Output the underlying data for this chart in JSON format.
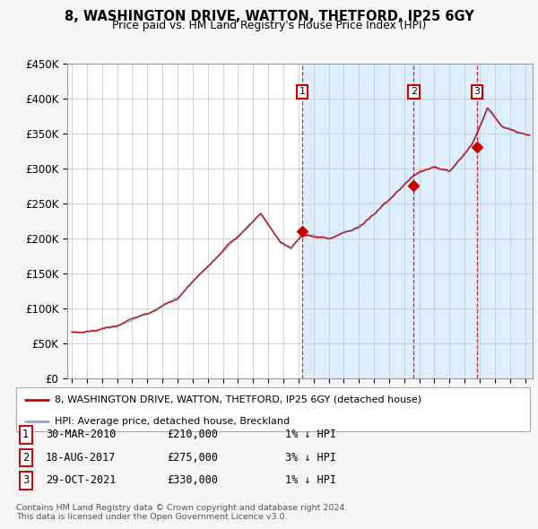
{
  "title": "8, WASHINGTON DRIVE, WATTON, THETFORD, IP25 6GY",
  "subtitle": "Price paid vs. HM Land Registry's House Price Index (HPI)",
  "ylabel_ticks": [
    "£0",
    "£50K",
    "£100K",
    "£150K",
    "£200K",
    "£250K",
    "£300K",
    "£350K",
    "£400K",
    "£450K"
  ],
  "ylim": [
    0,
    450000
  ],
  "xlim_start": 1995.0,
  "xlim_end": 2025.5,
  "hpi_color": "#88aadd",
  "price_color": "#cc0000",
  "marker_color": "#cc0000",
  "sale_points": [
    {
      "date_num": 2010.25,
      "price": 210000,
      "label": "1"
    },
    {
      "date_num": 2017.63,
      "price": 275000,
      "label": "2"
    },
    {
      "date_num": 2021.83,
      "price": 330000,
      "label": "3"
    }
  ],
  "vline_dates": [
    2010.25,
    2017.63,
    2021.83
  ],
  "legend_entries": [
    "8, WASHINGTON DRIVE, WATTON, THETFORD, IP25 6GY (detached house)",
    "HPI: Average price, detached house, Breckland"
  ],
  "table_rows": [
    {
      "num": "1",
      "date": "30-MAR-2010",
      "price": "£210,000",
      "pct": "1% ↓ HPI"
    },
    {
      "num": "2",
      "date": "18-AUG-2017",
      "price": "£275,000",
      "pct": "3% ↓ HPI"
    },
    {
      "num": "3",
      "date": "29-OCT-2021",
      "price": "£330,000",
      "pct": "1% ↓ HPI"
    }
  ],
  "footer": "Contains HM Land Registry data © Crown copyright and database right 2024.\nThis data is licensed under the Open Government Licence v3.0.",
  "fig_bg_color": "#f5f5f5",
  "plot_bg_color": "#ffffff",
  "plot_bg_shaded": "#ddeeff",
  "grid_color": "#cccccc",
  "hpi_anchors_x": [
    1995.0,
    1996.5,
    1998.0,
    2000.0,
    2002.0,
    2004.0,
    2007.5,
    2008.8,
    2009.5,
    2010.25,
    2012.0,
    2014.0,
    2016.0,
    2017.5,
    2019.0,
    2020.0,
    2021.5,
    2022.5,
    2023.5,
    2024.5,
    2025.3
  ],
  "hpi_anchors_y": [
    65000,
    68000,
    75000,
    92000,
    115000,
    160000,
    235000,
    195000,
    185000,
    205000,
    200000,
    215000,
    255000,
    288000,
    302000,
    295000,
    335000,
    385000,
    360000,
    350000,
    348000
  ]
}
